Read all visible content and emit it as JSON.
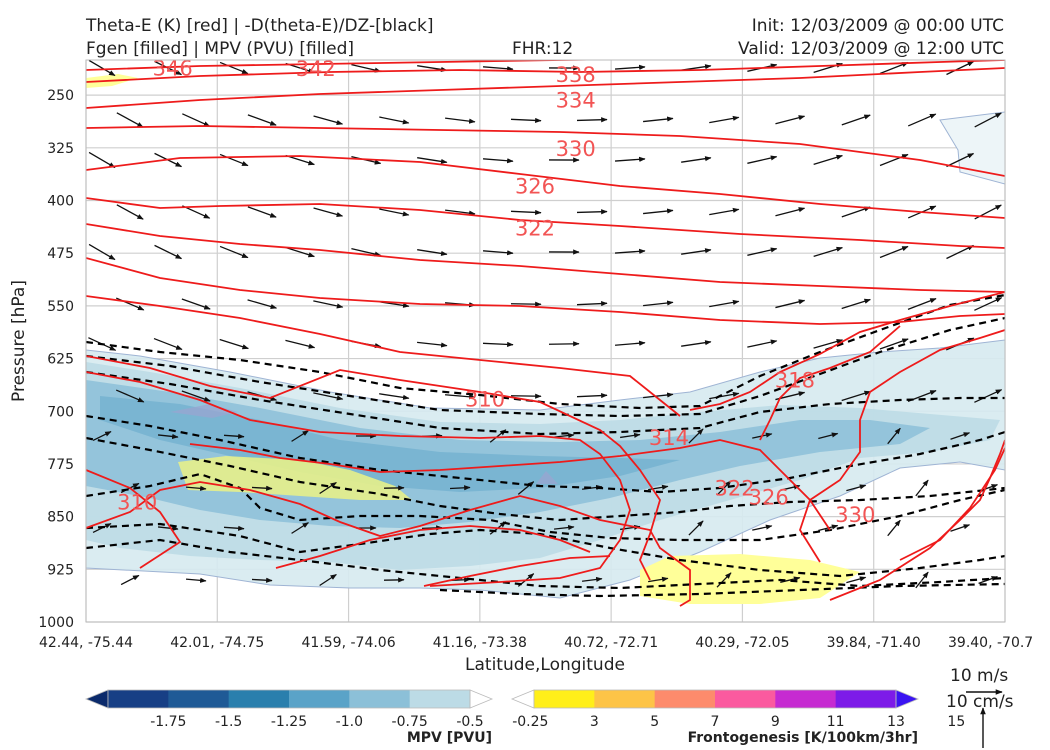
{
  "header": {
    "title_left_line1": "Theta-E (K) [red] | -D(theta-E)/DZ-[black]",
    "title_left_line2": "Fgen [filled] | MPV (PVU) [filled]",
    "fhr": "FHR:12",
    "init": "Init: 12/03/2009 @ 00:00 UTC",
    "valid": "Valid: 12/03/2009 @ 12:00 UTC"
  },
  "chart_data": {
    "type": "cross-section",
    "xlabel": "Latitude,Longitude",
    "ylabel": "Pressure [hPa]",
    "y_scale": "linear",
    "ylim": [
      1000,
      200
    ],
    "x_ticks": [
      "42.44, -75.44",
      "42.01, -74.75",
      "41.59, -74.06",
      "41.16, -73.38",
      "40.72, -72.71",
      "40.29, -72.05",
      "39.84, -71.40",
      "39.40, -70.7"
    ],
    "y_ticks": [
      250,
      325,
      400,
      475,
      550,
      625,
      700,
      775,
      850,
      925,
      1000
    ],
    "grid": true,
    "theta_e_labels": [
      {
        "text": "346",
        "x": 0.66,
        "p": 212
      },
      {
        "text": "342",
        "x": 1.75,
        "p": 213
      },
      {
        "text": "338",
        "x": 3.73,
        "p": 221
      },
      {
        "text": "334",
        "x": 3.73,
        "p": 258
      },
      {
        "text": "330",
        "x": 3.73,
        "p": 327
      },
      {
        "text": "326",
        "x": 3.42,
        "p": 380
      },
      {
        "text": "322",
        "x": 3.42,
        "p": 440
      },
      {
        "text": "310",
        "x": 3.04,
        "p": 683
      },
      {
        "text": "314",
        "x": 4.44,
        "p": 738
      },
      {
        "text": "318",
        "x": 5.4,
        "p": 656
      },
      {
        "text": "322",
        "x": 4.94,
        "p": 810
      },
      {
        "text": "326",
        "x": 5.2,
        "p": 823
      },
      {
        "text": "330",
        "x": 5.86,
        "p": 848
      },
      {
        "text": "310",
        "x": 0.39,
        "p": 830
      }
    ],
    "mpv_colorbar": {
      "label": "MPV [PVU]",
      "ticks": [
        "-1.75",
        "-1.5",
        "-1.25",
        "-1.0",
        "-0.75",
        "-0.5",
        "-0.25"
      ],
      "colors": [
        "#0b2a6b",
        "#173f85",
        "#1f5a96",
        "#2a7fad",
        "#5aa3c8",
        "#8cc0d8",
        "#bcdbe6",
        "#ffffff"
      ]
    },
    "fgen_colorbar": {
      "label": "Frontogenesis [K/100km/3hr]",
      "ticks": [
        "3",
        "5",
        "7",
        "9",
        "11",
        "13",
        "15"
      ],
      "colors": [
        "#ffffff",
        "#ffef1a",
        "#fdc447",
        "#fd8b6c",
        "#fb5a9f",
        "#c62bd1",
        "#7d1be8",
        "#3a14f2"
      ]
    },
    "wind_key": {
      "top_label": "10 m/s",
      "bottom_label": "10 cm/s"
    }
  }
}
